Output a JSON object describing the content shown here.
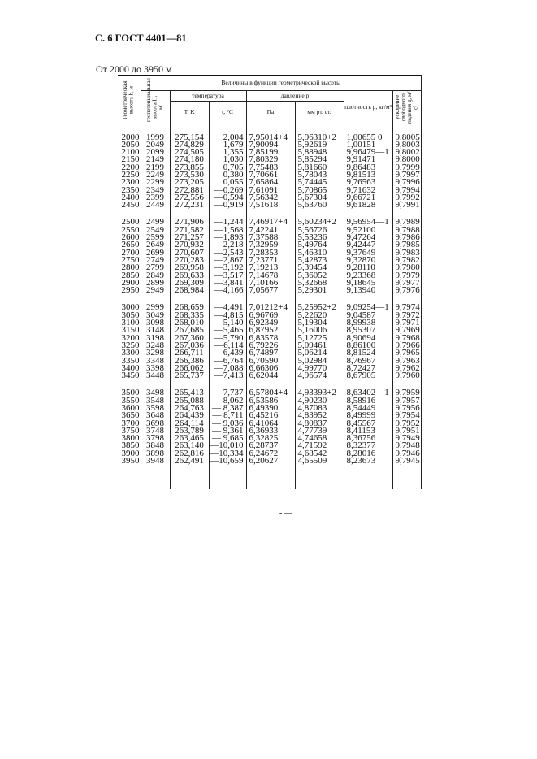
{
  "page_header": "С. 6 ГОСТ 4401—81",
  "range_title": "От 2000 до 3950 м",
  "footer": "- —",
  "table": {
    "headers": {
      "geometric_height": "Геометрическая высота h, м",
      "group_title": "Величины в функции геометрической высоты",
      "geopotential_height": "геопотенциальная высота H, м'",
      "temperature": "температура",
      "T_K": "T, К",
      "t_C": "t, °С",
      "pressure": "давление p",
      "Pa": "Па",
      "mmHg": "мм рт. ст.",
      "density": "плотность ρ, кг/м³",
      "gravity": "ускорение свободного падения g, м/с²"
    },
    "groups": [
      {
        "rows": [
          [
            "2000",
            "1999",
            "275,154",
            "2,004",
            "7,95014+4",
            "5,96310+2",
            "1,00655  0",
            "9,8005"
          ],
          [
            "2050",
            "2049",
            "274,829",
            "1,679",
            "7,90094",
            "5,92619",
            "1,00151",
            "9,8003"
          ],
          [
            "2100",
            "2099",
            "274,505",
            "1,355",
            "7,85199",
            "5,88948",
            "9,96479—1",
            "9,8002"
          ],
          [
            "2150",
            "2149",
            "274,180",
            "1,030",
            "7,80329",
            "5,85294",
            "9,91471",
            "9,8000"
          ],
          [
            "2200",
            "2199",
            "273,855",
            "0,705",
            "7,75483",
            "5,81660",
            "9,86483",
            "9,7999"
          ],
          [
            "2250",
            "2249",
            "273,530",
            "0,380",
            "7,70661",
            "5,78043",
            "9,81513",
            "9,7997"
          ],
          [
            "2300",
            "2299",
            "273,205",
            "0,055",
            "7,65864",
            "5,74445",
            "9,76563",
            "9,7996"
          ],
          [
            "2350",
            "2349",
            "272,881",
            "—0,269",
            "7,61091",
            "5,70865",
            "9,71632",
            "9,7994"
          ],
          [
            "2400",
            "2399",
            "272,556",
            "—0,594",
            "7,56342",
            "5,67304",
            "9,66721",
            "9,7992"
          ],
          [
            "2450",
            "2449",
            "272,231",
            "—0,919",
            "7,51618",
            "5,63760",
            "9,61828",
            "9,7991"
          ]
        ]
      },
      {
        "rows": [
          [
            "2500",
            "2499",
            "271,906",
            "—1,244",
            "7,46917+4",
            "5,60234+2",
            "9,56954—1",
            "9,7989"
          ],
          [
            "2550",
            "2549",
            "271,582",
            "—1,568",
            "7,42241",
            "5,56726",
            "9,52100",
            "9,7988"
          ],
          [
            "2600",
            "2599",
            "271,257",
            "—1,893",
            "7,37588",
            "5,53236",
            "9,47264",
            "9,7986"
          ],
          [
            "2650",
            "2649",
            "270,932",
            "—2,218",
            "7,32959",
            "5,49764",
            "9,42447",
            "9,7985"
          ],
          [
            "2700",
            "2699",
            "270,607",
            "—2,543",
            "7,28353",
            "5,46310",
            "9,37649",
            "9,7983"
          ],
          [
            "2750",
            "2749",
            "270,283",
            "—2,867",
            "7,23771",
            "5,42873",
            "9,32870",
            "9,7982"
          ],
          [
            "2800",
            "2799",
            "269,958",
            "—3,192",
            "7,19213",
            "5,39454",
            "9,28110",
            "9,7980"
          ],
          [
            "2850",
            "2849",
            "269,633",
            "—3,517",
            "7,14678",
            "5,36052",
            "9,23368",
            "9,7979"
          ],
          [
            "2900",
            "2899",
            "269,309",
            "—3,841",
            "7,10166",
            "5,32668",
            "9,18645",
            "9,7977"
          ],
          [
            "2950",
            "2949",
            "268,984",
            "—4,166",
            "7,05677",
            "5,29301",
            "9,13940",
            "9,7976"
          ]
        ]
      },
      {
        "rows": [
          [
            "3000",
            "2999",
            "268,659",
            "—4,491",
            "7,01212+4",
            "5,25952+2",
            "9,09254—1",
            "9,7974"
          ],
          [
            "3050",
            "3049",
            "268,335",
            "—4,815",
            "6,96769",
            "5,22620",
            "9,04587",
            "9,7972"
          ],
          [
            "3100",
            "3098",
            "268,010",
            "—5,140",
            "6,92349",
            "5,19304",
            "8,99938",
            "9,7971"
          ],
          [
            "3150",
            "3148",
            "267,685",
            "—5,465",
            "6,87952",
            "5,16006",
            "8,95307",
            "9,7969"
          ],
          [
            "3200",
            "3198",
            "267,360",
            "—5,790",
            "6,83578",
            "5,12725",
            "8,90694",
            "9,7968"
          ],
          [
            "3250",
            "3248",
            "267,036",
            "—6,114",
            "6,79226",
            "5,09461",
            "8,86100",
            "9,7966"
          ],
          [
            "3300",
            "3298",
            "266,711",
            "—6,439",
            "6,74897",
            "5,06214",
            "8,81524",
            "9,7965"
          ],
          [
            "3350",
            "3348",
            "266,386",
            "—6,764",
            "6,70590",
            "5,02984",
            "8,76967",
            "9,7963"
          ],
          [
            "3400",
            "3398",
            "266,062",
            "—7,088",
            "6,66306",
            "4,99770",
            "8,72427",
            "9,7962"
          ],
          [
            "3450",
            "3448",
            "265,737",
            "—7,413",
            "6,62044",
            "4,96574",
            "8,67905",
            "9,7960"
          ]
        ]
      },
      {
        "rows": [
          [
            "3500",
            "3498",
            "265,413",
            "— 7,737",
            "6,57804+4",
            "4,93393+2",
            "8,63402—1",
            "9,7959"
          ],
          [
            "3550",
            "3548",
            "265,088",
            "— 8,062",
            "6,53586",
            "4,90230",
            "8,58916",
            "9,7957"
          ],
          [
            "3600",
            "3598",
            "264,763",
            "— 8,387",
            "6,49390",
            "4,87083",
            "8,54449",
            "9,7956"
          ],
          [
            "3650",
            "3648",
            "264,439",
            "— 8,711",
            "6,45216",
            "4,83952",
            "8,49999",
            "9,7954"
          ],
          [
            "3700",
            "3698",
            "264,114",
            "— 9,036",
            "6,41064",
            "4,80837",
            "8,45567",
            "9,7952"
          ],
          [
            "3750",
            "3748",
            "263,789",
            "— 9,361",
            "6,36933",
            "4,77739",
            "8,41153",
            "9,7951"
          ],
          [
            "3800",
            "3798",
            "263,465",
            "— 9,685",
            "6,32825",
            "4,74658",
            "8,36756",
            "9,7949"
          ],
          [
            "3850",
            "3848",
            "263,140",
            "—10,010",
            "6,28737",
            "4,71592",
            "8,32377",
            "9,7948"
          ],
          [
            "3900",
            "3898",
            "262,816",
            "—10,334",
            "6,24672",
            "4,68542",
            "8,28016",
            "9,7946"
          ],
          [
            "3950",
            "3948",
            "262,491",
            "—10,659",
            "6,20627",
            "4,65509",
            "8,23673",
            "9,7945"
          ]
        ]
      }
    ]
  }
}
